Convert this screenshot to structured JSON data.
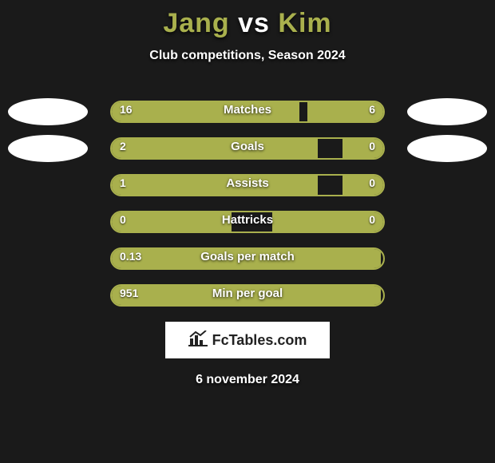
{
  "title": {
    "player1": "Jang",
    "vs": "vs",
    "player2": "Kim"
  },
  "subtitle": "Club competitions, Season 2024",
  "bar_track_width": 344,
  "stats": [
    {
      "label": "Matches",
      "left_val": "16",
      "right_val": "6",
      "left_pct": 69,
      "right_pct": 28,
      "photo_left": true,
      "photo_right": true
    },
    {
      "label": "Goals",
      "left_val": "2",
      "right_val": "0",
      "left_pct": 76,
      "right_pct": 15,
      "photo_left": true,
      "photo_right": true
    },
    {
      "label": "Assists",
      "left_val": "1",
      "right_val": "0",
      "left_pct": 76,
      "right_pct": 15,
      "photo_left": false,
      "photo_right": false
    },
    {
      "label": "Hattricks",
      "left_val": "0",
      "right_val": "0",
      "left_pct": 44,
      "right_pct": 41,
      "photo_left": false,
      "photo_right": false
    },
    {
      "label": "Goals per match",
      "left_val": "0.13",
      "right_val": "",
      "left_pct": 99,
      "right_pct": 0,
      "photo_left": false,
      "photo_right": false
    },
    {
      "label": "Min per goal",
      "left_val": "951",
      "right_val": "",
      "left_pct": 99,
      "right_pct": 0,
      "photo_left": false,
      "photo_right": false
    }
  ],
  "colors": {
    "background": "#1a1a1a",
    "accent": "#a9b04d",
    "text": "#ffffff",
    "photo_bg": "#ffffff",
    "logo_bg": "#ffffff",
    "logo_text": "#222222"
  },
  "logo": {
    "text": "FcTables.com"
  },
  "date": "6 november 2024"
}
